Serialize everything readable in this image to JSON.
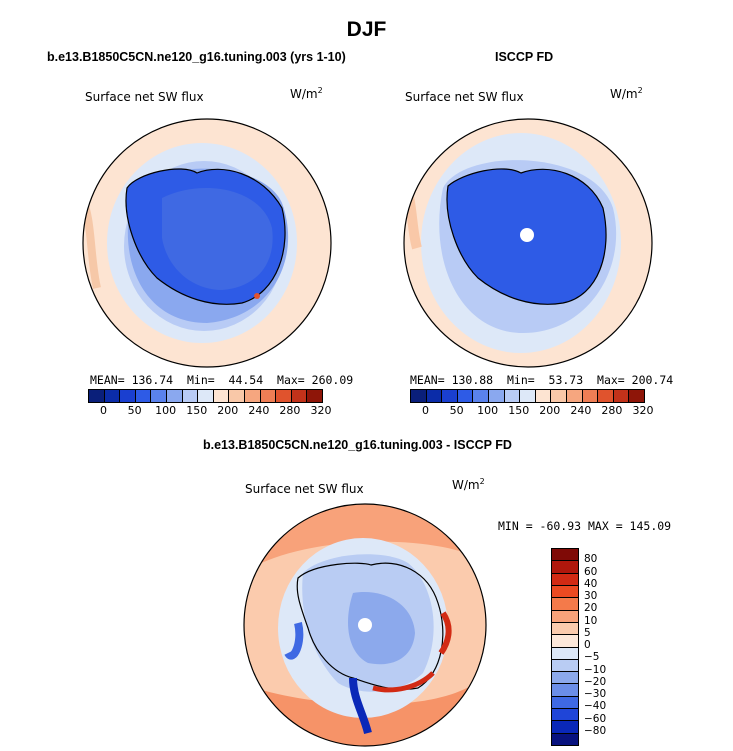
{
  "chart_data": [
    {
      "type": "heatmap",
      "projection": "south-polar-stereographic",
      "title": "b.e13.B1850C5CN.ne120_g16.tuning.003 (yrs 1-10)",
      "variable": "Surface net SW flux",
      "units": "W/m",
      "units_exp": "2",
      "stats": {
        "mean_label": "MEAN=",
        "mean": "136.74",
        "min_label": "Min=",
        "min": "44.54",
        "max_label": "Max=",
        "max": "260.09"
      },
      "levels": [
        0,
        25,
        50,
        75,
        100,
        125,
        150,
        175,
        200,
        220,
        240,
        260,
        280,
        300,
        320
      ],
      "tick_labels": [
        "0",
        "50",
        "100",
        "150",
        "200",
        "240",
        "280",
        "320"
      ]
    },
    {
      "type": "heatmap",
      "projection": "south-polar-stereographic",
      "title": "ISCCP FD",
      "variable": "Surface net SW flux",
      "units": "W/m",
      "units_exp": "2",
      "stats": {
        "mean_label": "MEAN=",
        "mean": "130.88",
        "min_label": "Min=",
        "min": "53.73",
        "max_label": "Max=",
        "max": "200.74"
      },
      "levels": [
        0,
        25,
        50,
        75,
        100,
        125,
        150,
        175,
        200,
        220,
        240,
        260,
        280,
        300,
        320
      ],
      "tick_labels": [
        "0",
        "50",
        "100",
        "150",
        "200",
        "240",
        "280",
        "320"
      ]
    },
    {
      "type": "heatmap",
      "projection": "south-polar-stereographic",
      "title": "b.e13.B1850C5CN.ne120_g16.tuning.003 - ISCCP FD",
      "variable": "Surface net SW flux",
      "units": "W/m",
      "units_exp": "2",
      "stats_text": "MIN = -60.93 MAX = 145.09",
      "levels": [
        -80,
        -60,
        -40,
        -30,
        -20,
        -10,
        -5,
        0,
        5,
        10,
        20,
        30,
        40,
        60,
        80
      ],
      "tick_labels": [
        "80",
        "60",
        "40",
        "30",
        "20",
        "10",
        "5",
        "0",
        "−5",
        "−10",
        "−20",
        "−30",
        "−40",
        "−60",
        "−80"
      ]
    }
  ],
  "page": {
    "season": "DJF"
  },
  "colors": {
    "abs_scale": [
      "#0a1f7a",
      "#0b2ca8",
      "#1a3fd0",
      "#2e5be6",
      "#5a82ec",
      "#8aa8ef",
      "#b8cbf5",
      "#dde8f8",
      "#fde4d2",
      "#f9c8a8",
      "#f6a67f",
      "#ef7e55",
      "#e0532d",
      "#c2321a",
      "#8e1508"
    ],
    "diff_scale": [
      "#7f0a06",
      "#b0170c",
      "#d22a14",
      "#eb4a22",
      "#f47a4a",
      "#f8a27a",
      "#fbcbad",
      "#fde8da",
      "#dde8f8",
      "#b9ccf3",
      "#8ca9ec",
      "#6b8ee8",
      "#3f69e3",
      "#1f45d8",
      "#0a28b8",
      "#08127e"
    ]
  }
}
